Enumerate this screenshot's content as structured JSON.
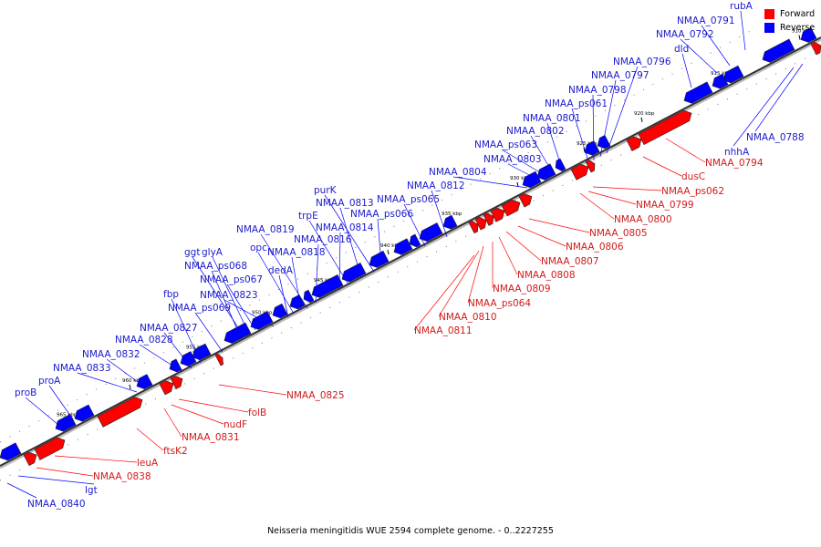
{
  "caption": "Neisseria meningitidis WUE 2594 complete genome. - 0..2227255",
  "legend": {
    "forward": {
      "label": "Forward",
      "color": "#ff0000"
    },
    "reverse": {
      "label": "Reverse",
      "color": "#0000ff"
    }
  },
  "ticks": [
    "910 kbp",
    "915 kbp",
    "920 kbp",
    "925 kbp",
    "930 kbp",
    "935 kbp",
    "940 kbp",
    "945 kbp",
    "950 kbp",
    "955 kbp",
    "960 kbp",
    "965 kbp"
  ],
  "reverse_genes": [
    "rubA",
    "NMAA_0791",
    "NMAA_0792",
    "dld",
    "NMAA_0796",
    "NMAA_0797",
    "NMAA_0798",
    "NMAA_ps061",
    "NMAA_0801",
    "NMAA_0802",
    "NMAA_ps063",
    "NMAA_0803",
    "NMAA_0804",
    "NMAA_0812",
    "NMAA_ps065",
    "purK",
    "NMAA_0813",
    "NMAA_ps066",
    "trpE",
    "NMAA_0814",
    "NMAA_0819",
    "NMAA_0816",
    "ggt",
    "glyA",
    "opc",
    "NMAA_0818",
    "NMAA_ps068",
    "dedA",
    "NMAA_ps067",
    "fbp",
    "NMAA_0823",
    "NMAA_ps069",
    "NMAA_0827",
    "NMAA_0828",
    "NMAA_0832",
    "NMAA_0833",
    "proA",
    "proB",
    "NMAA_0788",
    "nhhA",
    "lgt",
    "NMAA_0840"
  ],
  "forward_genes": [
    "NMAA_0794",
    "dusC",
    "NMAA_ps062",
    "NMAA_0799",
    "NMAA_0800",
    "NMAA_0805",
    "NMAA_0806",
    "NMAA_0807",
    "NMAA_0808",
    "NMAA_0809",
    "NMAA_ps064",
    "NMAA_0810",
    "NMAA_0811",
    "NMAA_0825",
    "folB",
    "nudF",
    "NMAA_0831",
    "ftsK2",
    "leuA",
    "NMAA_0838"
  ]
}
